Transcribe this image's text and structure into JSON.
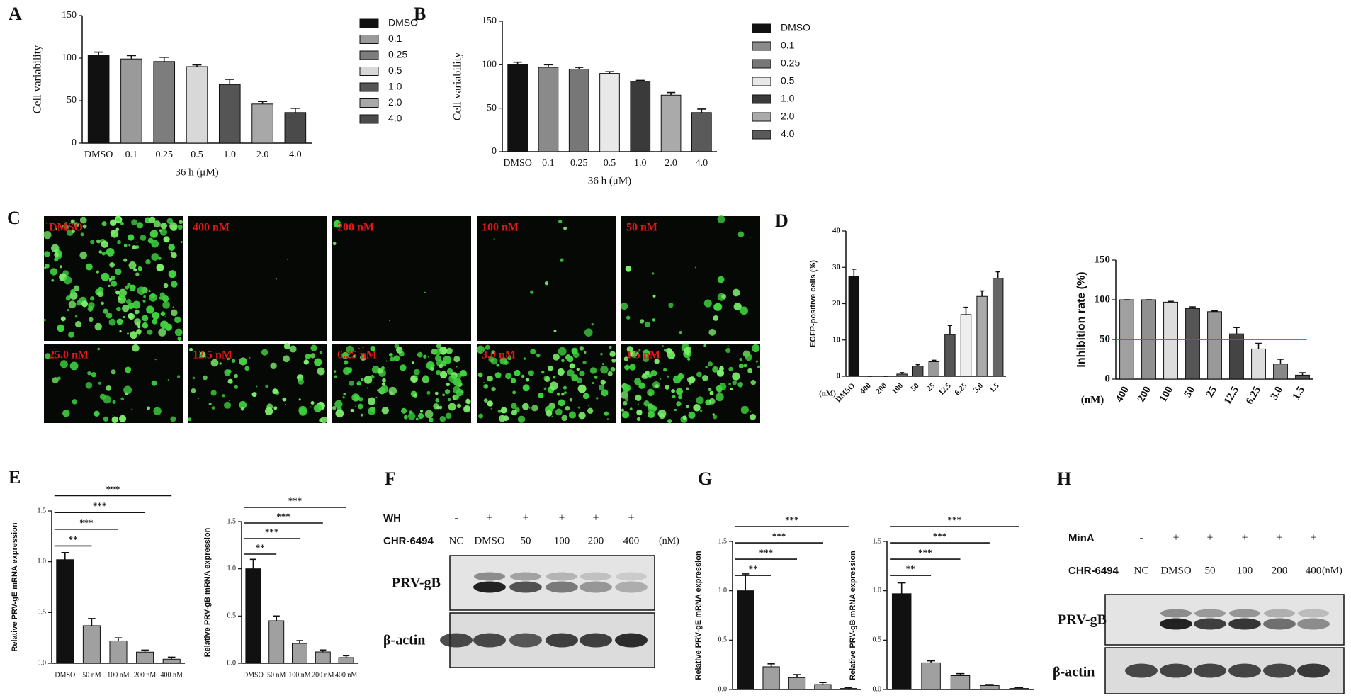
{
  "panel_letters": [
    "A",
    "B",
    "C",
    "D",
    "E",
    "F",
    "G",
    "H"
  ],
  "chart_data": [
    {
      "type": "bar",
      "ylabel": "Cell variability",
      "xlabel": "36 h (μM)",
      "categories": [
        "DMSO",
        "0.1",
        "0.25",
        "0.5",
        "1.0",
        "2.0",
        "4.0"
      ],
      "values": [
        103,
        99,
        96,
        90,
        69,
        46,
        36
      ],
      "errors": [
        4,
        4,
        5,
        2,
        6,
        3,
        5
      ],
      "colors": [
        "#111111",
        "#9a9a9a",
        "#7d7d7d",
        "#d8d8d8",
        "#555555",
        "#a8a8a8",
        "#4a4a4a"
      ],
      "ylim": [
        0,
        150
      ],
      "yticks": [
        0,
        50,
        100,
        150
      ],
      "legend": "right"
    },
    {
      "type": "bar",
      "ylabel": "Cell variability",
      "xlabel": "36 h (μM)",
      "categories": [
        "DMSO",
        "0.1",
        "0.25",
        "0.5",
        "1.0",
        "2.0",
        "4.0"
      ],
      "values": [
        100,
        97,
        95,
        90,
        81,
        65,
        45
      ],
      "errors": [
        3,
        3,
        2,
        2,
        1,
        3,
        4
      ],
      "colors": [
        "#111111",
        "#8a8a8a",
        "#777777",
        "#e8e8e8",
        "#3a3a3a",
        "#aaaaaa",
        "#5a5a5a"
      ],
      "ylim": [
        0,
        150
      ],
      "yticks": [
        0,
        50,
        100,
        150
      ],
      "legend": "right"
    },
    {
      "type": "bar",
      "ylabel": "EGFP-positive cells (%)",
      "x_unit": "(nM)",
      "categories": [
        "DMSO",
        "400",
        "200",
        "100",
        "50",
        "25",
        "12.5",
        "6.25",
        "3.0",
        "1.5"
      ],
      "values": [
        27.5,
        0,
        0,
        0.6,
        2.8,
        4,
        11.5,
        17,
        22,
        27
      ],
      "errors": [
        2,
        0,
        0,
        0.4,
        0.4,
        0.4,
        2.5,
        2,
        1.5,
        1.8
      ],
      "colors": [
        "#111111",
        "#888888",
        "#888888",
        "#666666",
        "#555555",
        "#999999",
        "#555555",
        "#eeeeee",
        "#aaaaaa",
        "#666666"
      ],
      "ylim": [
        0,
        40
      ],
      "yticks": [
        0,
        10,
        20,
        30,
        40
      ]
    },
    {
      "type": "bar",
      "ylabel": "Inhibition rate (%)",
      "x_unit": "(nM)",
      "categories": [
        "400",
        "200",
        "100",
        "50",
        "25",
        "12.5",
        "6.25",
        "3.0",
        "1.5"
      ],
      "values": [
        100,
        100,
        97,
        89,
        85,
        57,
        38,
        19,
        5
      ],
      "errors": [
        0,
        0,
        1,
        2,
        1,
        8,
        7,
        6,
        3
      ],
      "colors": [
        "#a0a0a0",
        "#909090",
        "#dddddd",
        "#555555",
        "#999999",
        "#444444",
        "#dddddd",
        "#888888",
        "#555555"
      ],
      "ylim": [
        0,
        150
      ],
      "yticks": [
        0,
        50,
        100,
        150
      ],
      "reference_line": {
        "value": 50,
        "color": "#e03030"
      }
    },
    {
      "type": "bar",
      "ylabel": "Relative PRV-gE mRNA expression",
      "categories": [
        "DMSO",
        "50 nM",
        "100 nM",
        "200 nM",
        "400 nM"
      ],
      "values": [
        1.02,
        0.37,
        0.22,
        0.11,
        0.04
      ],
      "errors": [
        0.07,
        0.07,
        0.03,
        0.02,
        0.02
      ],
      "colors": [
        "#111111",
        "#a0a0a0",
        "#a0a0a0",
        "#a0a0a0",
        "#a0a0a0"
      ],
      "ylim": [
        0,
        1.5
      ],
      "yticks": [
        {
          "value": 0,
          "label": "0.0"
        },
        0.5,
        {
          "value": 1,
          "label": "1.0"
        },
        1.5
      ],
      "significance": [
        "**",
        "***",
        "***",
        "***"
      ]
    },
    {
      "type": "bar",
      "ylabel": "Relative PRV-gB mRNA expression",
      "categories": [
        "DMSO",
        "50 nM",
        "100 nM",
        "200 nM",
        "400 nM"
      ],
      "values": [
        1.0,
        0.45,
        0.21,
        0.12,
        0.06
      ],
      "errors": [
        0.1,
        0.05,
        0.03,
        0.02,
        0.02
      ],
      "colors": [
        "#111111",
        "#a0a0a0",
        "#a0a0a0",
        "#a0a0a0",
        "#a0a0a0"
      ],
      "ylim": [
        0,
        1.5
      ],
      "yticks": [
        {
          "value": 0,
          "label": "0.0"
        },
        0.5,
        {
          "value": 1,
          "label": "1.0"
        },
        1.5
      ],
      "significance": [
        "**",
        "***",
        "***",
        "***"
      ]
    },
    {
      "type": "bar",
      "ylabel": "Relative PRV-gE mRNA expression",
      "categories": [
        "DMSO",
        "50 nM",
        "100 nM",
        "200 nM",
        "400 nM"
      ],
      "values": [
        1.0,
        0.23,
        0.12,
        0.05,
        0.01
      ],
      "errors": [
        0.17,
        0.03,
        0.03,
        0.02,
        0.01
      ],
      "colors": [
        "#111111",
        "#a0a0a0",
        "#a0a0a0",
        "#a0a0a0",
        "#a0a0a0"
      ],
      "ylim": [
        0,
        1.5
      ],
      "yticks": [
        {
          "value": 0,
          "label": "0.0"
        },
        0.5,
        {
          "value": 1,
          "label": "1.0"
        },
        1.5
      ],
      "significance": [
        "**",
        "***",
        "***",
        "***"
      ]
    },
    {
      "type": "bar",
      "ylabel": "Relative PRV-gB mRNA expression",
      "categories": [
        "DMSO",
        "50 nM",
        "100 nM",
        "200 nM",
        "400 nM"
      ],
      "values": [
        0.97,
        0.27,
        0.14,
        0.04,
        0.01
      ],
      "errors": [
        0.11,
        0.02,
        0.02,
        0.01,
        0.01
      ],
      "colors": [
        "#111111",
        "#a0a0a0",
        "#a0a0a0",
        "#a0a0a0",
        "#a0a0a0"
      ],
      "ylim": [
        0,
        1.5
      ],
      "yticks": [
        {
          "value": 0,
          "label": "0.0"
        },
        0.5,
        {
          "value": 1,
          "label": "1.0"
        },
        1.5
      ],
      "significance": [
        "**",
        "***",
        "***",
        "***"
      ]
    }
  ],
  "micrographs": {
    "labels": [
      "DMSO",
      "400 nM",
      "200 nM",
      "100 nM",
      "50 nM",
      "25.0 nM",
      "12.5 nM",
      "6.25 nM",
      "3.0 nM",
      "1.5 nM"
    ]
  },
  "blots": [
    {
      "treatment": "WH",
      "treatment_signs": [
        "-",
        "+",
        "+",
        "+",
        "+",
        "+"
      ],
      "compound": "CHR-6494",
      "lanes": [
        "NC",
        "DMSO",
        "50",
        "100",
        "200",
        "400"
      ],
      "unit": "(nM)",
      "rows": [
        "PRV-gB",
        "β-actin"
      ]
    },
    {
      "treatment": "MinA",
      "treatment_signs": [
        "-",
        "+",
        "+",
        "+",
        "+",
        "+"
      ],
      "compound": "CHR-6494",
      "lanes": [
        "NC",
        "DMSO",
        "50",
        "100",
        "200",
        "400"
      ],
      "unit": "(nM)",
      "rows": [
        "PRV-gB",
        "β-actin"
      ]
    }
  ]
}
